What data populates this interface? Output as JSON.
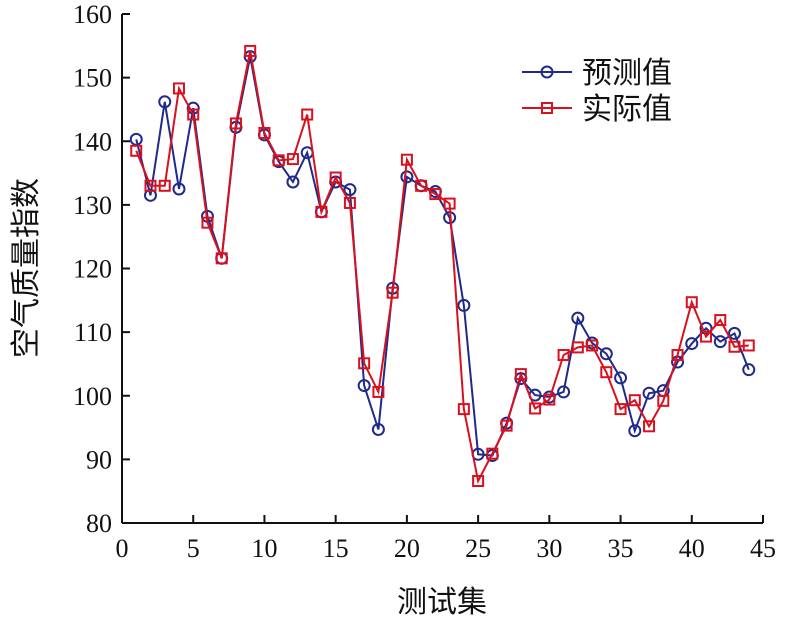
{
  "chart_data": {
    "type": "line",
    "title": "",
    "xlabel": "测试集",
    "ylabel": "空气质量指数",
    "xlim": [
      0,
      45
    ],
    "ylim": [
      80,
      160
    ],
    "xticks": [
      0,
      5,
      10,
      15,
      20,
      25,
      30,
      35,
      40,
      45
    ],
    "yticks": [
      80,
      90,
      100,
      110,
      120,
      130,
      140,
      150,
      160
    ],
    "grid": false,
    "legend_position": "top-right",
    "x": [
      1,
      2,
      3,
      4,
      5,
      6,
      7,
      8,
      9,
      10,
      11,
      12,
      13,
      14,
      15,
      16,
      17,
      18,
      19,
      20,
      21,
      22,
      23,
      24,
      25,
      26,
      27,
      28,
      29,
      30,
      31,
      32,
      33,
      34,
      35,
      36,
      37,
      38,
      39,
      40,
      41,
      42,
      43,
      44
    ],
    "series": [
      {
        "name": "预测值",
        "color": "#1f2a8a",
        "marker": "circle",
        "values": [
          140.3,
          131.5,
          146.2,
          132.5,
          145.2,
          128.2,
          121.6,
          142.2,
          153.3,
          141.0,
          136.8,
          133.6,
          138.2,
          128.9,
          133.6,
          132.4,
          101.6,
          94.7,
          116.9,
          134.4,
          133.0,
          132.1,
          128.0,
          114.2,
          90.8,
          90.6,
          95.7,
          102.7,
          100.1,
          99.8,
          100.6,
          112.2,
          108.3,
          106.6,
          102.8,
          94.5,
          100.4,
          100.8,
          105.3,
          108.2,
          110.6,
          108.5,
          109.8,
          104.1
        ]
      },
      {
        "name": "实际值",
        "color": "#d9111e",
        "marker": "square",
        "values": [
          138.5,
          133.0,
          133.0,
          148.3,
          144.2,
          127.2,
          121.6,
          142.8,
          154.2,
          141.3,
          137.0,
          137.2,
          144.2,
          128.9,
          134.3,
          130.3,
          105.1,
          100.6,
          116.2,
          137.1,
          133.0,
          131.7,
          130.2,
          97.9,
          86.6,
          90.9,
          95.3,
          103.4,
          98.0,
          99.4,
          106.4,
          107.6,
          107.9,
          103.7,
          97.9,
          99.3,
          95.2,
          99.2,
          106.4,
          114.7,
          109.3,
          111.9,
          107.7,
          107.9
        ]
      }
    ]
  }
}
